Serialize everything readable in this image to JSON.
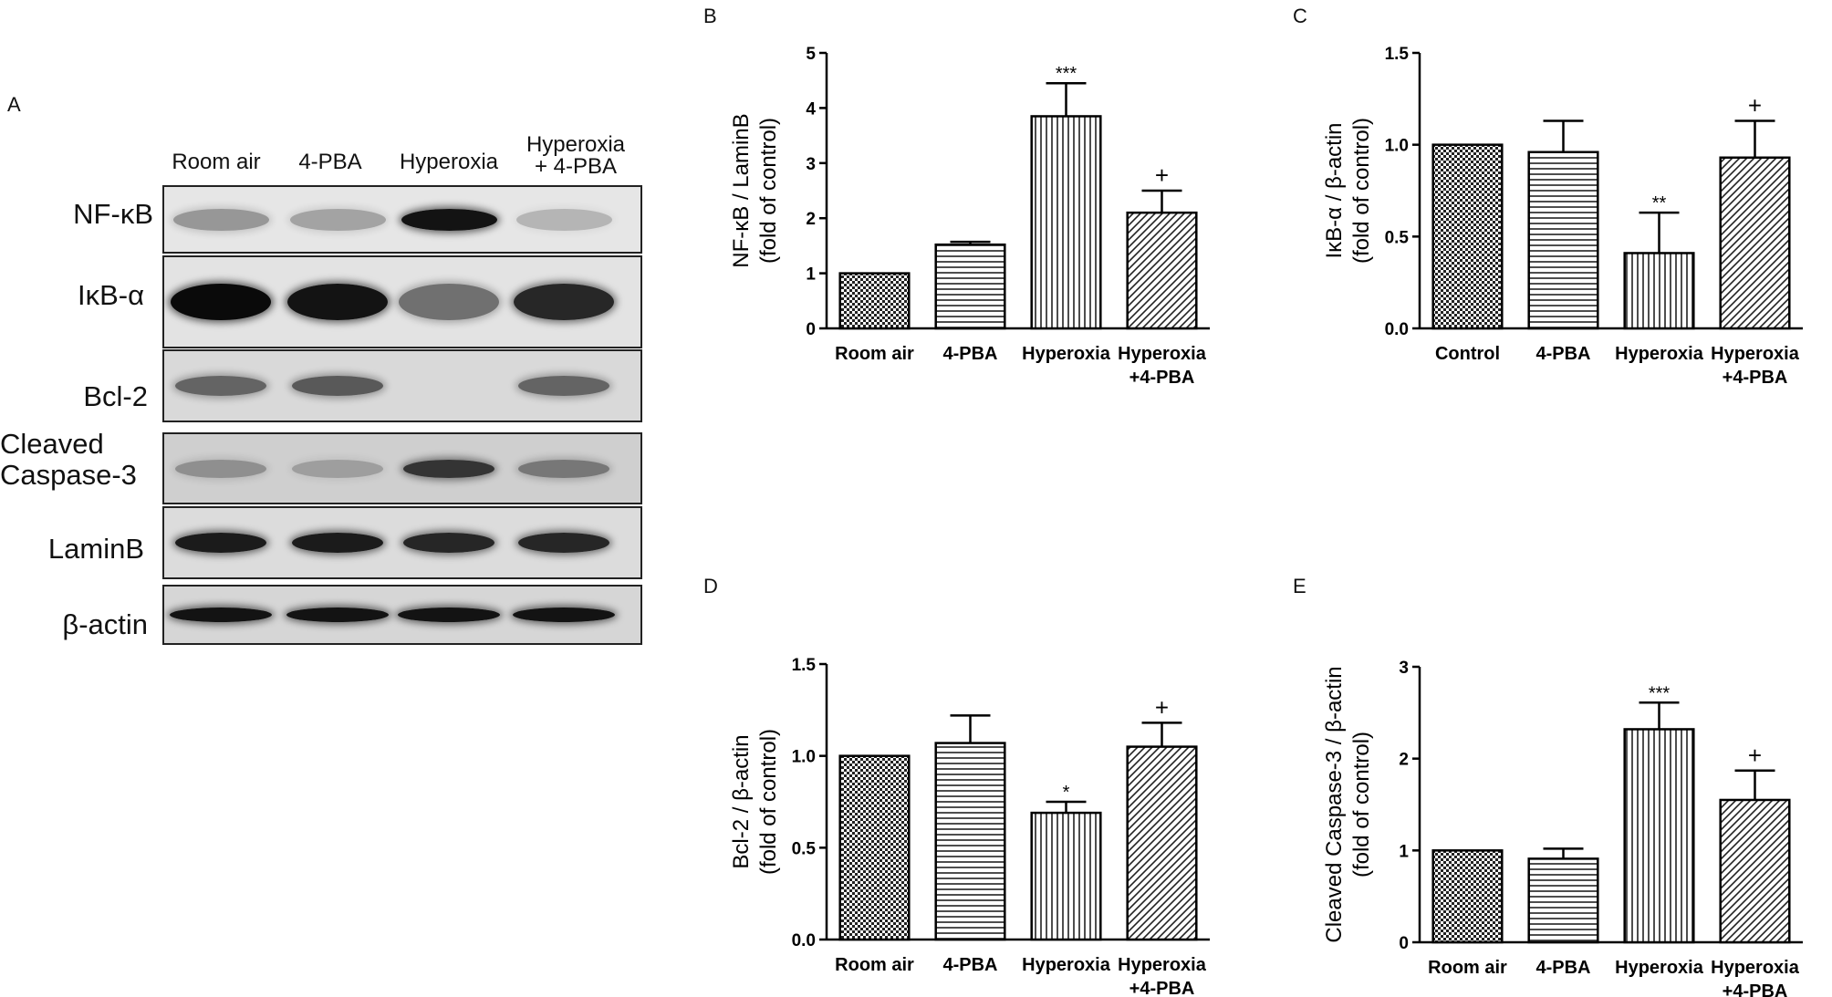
{
  "panel_labels": {
    "a": "A",
    "b": "B",
    "c": "C",
    "d": "D",
    "e": "E"
  },
  "blot": {
    "lanes": [
      "Room air",
      "4-PBA",
      "Hyperoxia",
      "Hyperoxia\n+ 4-PBA"
    ],
    "rows": [
      {
        "label": "NF-κB",
        "intensity": [
          0.25,
          0.18,
          0.95,
          0.08
        ]
      },
      {
        "label": "IκB-α",
        "intensity": [
          1.0,
          0.95,
          0.45,
          0.85
        ]
      },
      {
        "label": "Bcl-2",
        "intensity": [
          0.5,
          0.55,
          0.0,
          0.5
        ]
      },
      {
        "label": "Cleaved\nCaspase-3",
        "intensity": [
          0.2,
          0.12,
          0.75,
          0.35
        ]
      },
      {
        "label": "LaminB",
        "intensity": [
          0.9,
          0.9,
          0.85,
          0.85
        ]
      },
      {
        "label": "β-actin",
        "intensity": [
          0.95,
          0.95,
          0.95,
          0.95
        ]
      }
    ]
  },
  "chart_data": [
    {
      "id": "B",
      "type": "bar",
      "categories": [
        "Room air",
        "4-PBA",
        "Hyperoxia",
        "Hyperoxia\n+4-PBA"
      ],
      "values": [
        1.0,
        1.52,
        3.85,
        2.1
      ],
      "errors": [
        0.0,
        0.05,
        0.6,
        0.4
      ],
      "annotations": [
        "",
        "",
        "***",
        "+"
      ],
      "ylabel": "NF-κB / LaminB\n(fold of control)",
      "ylim": [
        0,
        5
      ],
      "yticks": [
        "0",
        "1",
        "2",
        "3",
        "4",
        "5"
      ],
      "patterns": [
        "checker",
        "horizontal",
        "vertical",
        "diagonal"
      ]
    },
    {
      "id": "C",
      "type": "bar",
      "categories": [
        "Control",
        "4-PBA",
        "Hyperoxia",
        "Hyperoxia\n+4-PBA"
      ],
      "values": [
        1.0,
        0.96,
        0.41,
        0.93
      ],
      "errors": [
        0.0,
        0.17,
        0.22,
        0.2
      ],
      "annotations": [
        "",
        "",
        "**",
        "+"
      ],
      "ylabel": "IκB-α / β-actin\n(fold of control)",
      "ylim": [
        0,
        1.5
      ],
      "yticks": [
        "0.0",
        "0.5",
        "1.0",
        "1.5"
      ],
      "patterns": [
        "checker",
        "horizontal",
        "vertical",
        "diagonal"
      ]
    },
    {
      "id": "D",
      "type": "bar",
      "categories": [
        "Room air",
        "4-PBA",
        "Hyperoxia",
        "Hyperoxia\n+4-PBA"
      ],
      "values": [
        1.0,
        1.07,
        0.69,
        1.05
      ],
      "errors": [
        0.0,
        0.15,
        0.06,
        0.13
      ],
      "annotations": [
        "",
        "",
        "*",
        "+"
      ],
      "ylabel": "Bcl-2 / β-actin\n(fold of control)",
      "ylim": [
        0,
        1.5
      ],
      "yticks": [
        "0.0",
        "0.5",
        "1.0",
        "1.5"
      ],
      "patterns": [
        "checker",
        "horizontal",
        "vertical",
        "diagonal"
      ]
    },
    {
      "id": "E",
      "type": "bar",
      "categories": [
        "Room air",
        "4-PBA",
        "Hyperoxia",
        "Hyperoxia\n+4-PBA"
      ],
      "values": [
        1.0,
        0.91,
        2.32,
        1.55
      ],
      "errors": [
        0.0,
        0.11,
        0.29,
        0.32
      ],
      "annotations": [
        "",
        "",
        "***",
        "+"
      ],
      "ylabel": "Cleaved Caspase-3 / β-actin\n(fold of control)",
      "ylim": [
        0,
        3
      ],
      "yticks": [
        "0",
        "1",
        "2",
        "3"
      ],
      "patterns": [
        "checker",
        "horizontal",
        "vertical",
        "diagonal"
      ]
    }
  ]
}
